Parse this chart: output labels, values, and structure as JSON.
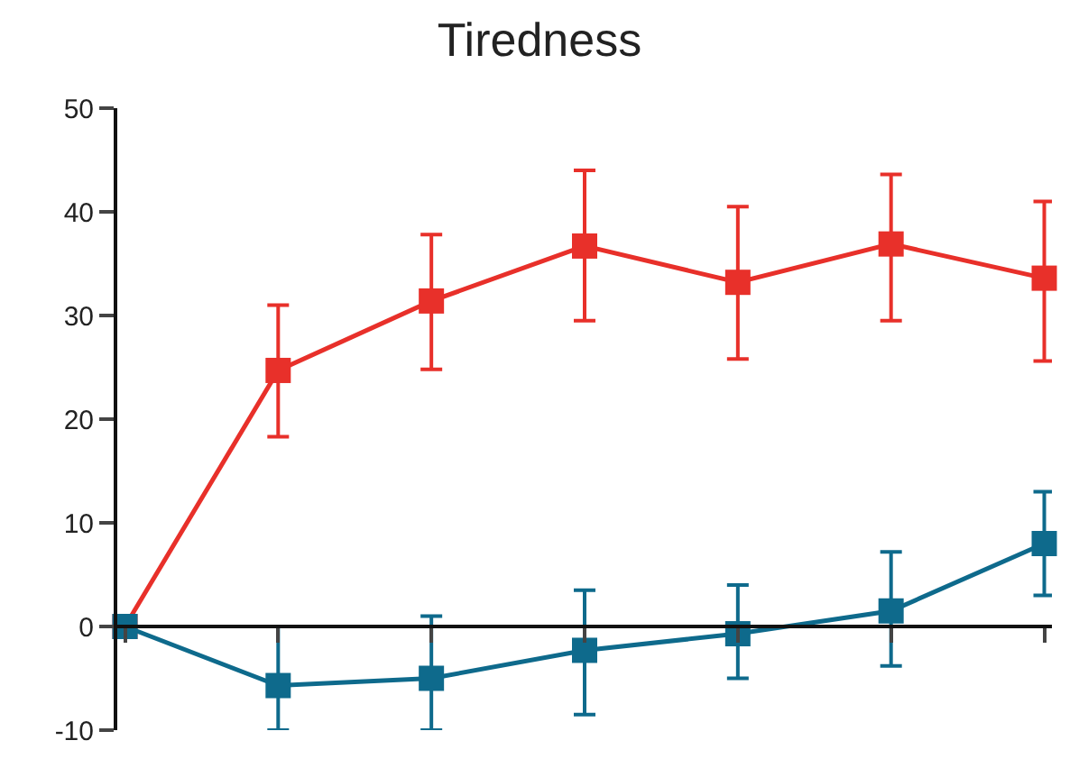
{
  "chart_data": {
    "type": "line",
    "title": "Tiredness",
    "categories": [
      null,
      null,
      null,
      null,
      null,
      null,
      null
    ],
    "series": [
      {
        "color": "#e8302a",
        "values": [
          0,
          24.7,
          31.4,
          36.7,
          33.2,
          36.9,
          33.6
        ],
        "errors": [
          null,
          [
            18.3,
            31
          ],
          [
            24.8,
            37.8
          ],
          [
            29.5,
            44
          ],
          [
            25.8,
            40.5
          ],
          [
            29.5,
            43.6
          ],
          [
            25.6,
            41
          ]
        ]
      },
      {
        "color": "#0e6a8c",
        "values": [
          0,
          -5.7,
          -5,
          -2.3,
          -0.7,
          1.5,
          8
        ],
        "errors": [
          null,
          [
            -10,
            0
          ],
          [
            -10,
            1
          ],
          [
            -8.5,
            3.5
          ],
          [
            -5,
            4
          ],
          [
            -3.8,
            7.2
          ],
          [
            3,
            13
          ]
        ]
      }
    ],
    "ylim": [
      -10,
      50
    ],
    "yticks": [
      -10,
      0,
      10,
      20,
      30,
      40,
      50
    ],
    "marker": "square",
    "line_style": "solid",
    "legend": false,
    "tick_labels": "y"
  }
}
